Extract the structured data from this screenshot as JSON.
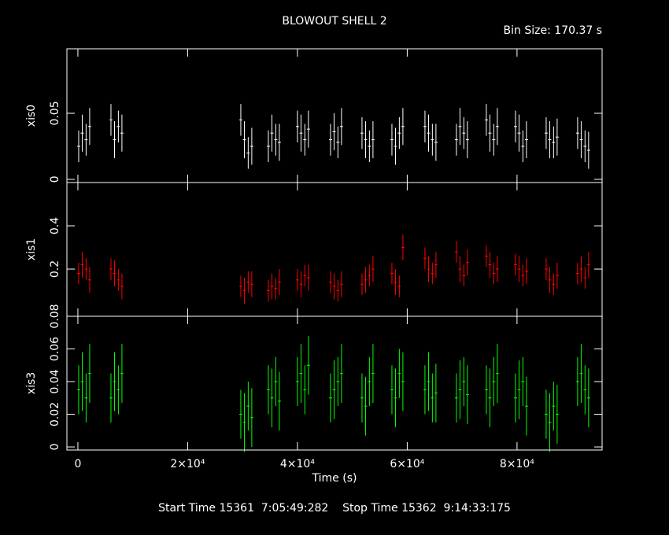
{
  "chart_data": [
    {
      "type": "scatter",
      "title": "BLOWOUT SHELL 2",
      "subtitle": "Bin Size: 170.37 s",
      "ylabel": "xis0",
      "color": "#ffffff",
      "ylim": [
        -0.0024,
        0.0988
      ],
      "yticks": [
        0,
        0.05
      ],
      "x": [
        147,
        797,
        1497,
        2147,
        6025,
        6675,
        7375,
        8025,
        29680,
        30330,
        31030,
        31680,
        34700,
        35350,
        36050,
        36700,
        40000,
        40650,
        41350,
        42000,
        46025,
        46675,
        47375,
        48025,
        51760,
        52410,
        53110,
        53760,
        57210,
        57860,
        58560,
        59210,
        63230,
        63880,
        64580,
        65230,
        68960,
        69610,
        70310,
        70960,
        74410,
        75060,
        75760,
        76410,
        79720,
        80370,
        81070,
        81720,
        85310,
        85960,
        86660,
        87310,
        91040,
        91690,
        92390,
        93040
      ],
      "values": [
        0.025,
        0.035,
        0.03,
        0.04,
        0.045,
        0.03,
        0.04,
        0.035,
        0.045,
        0.03,
        0.02,
        0.025,
        0.025,
        0.035,
        0.03,
        0.028,
        0.04,
        0.035,
        0.03,
        0.038,
        0.03,
        0.036,
        0.028,
        0.04,
        0.035,
        0.03,
        0.025,
        0.03,
        0.03,
        0.025,
        0.035,
        0.04,
        0.04,
        0.035,
        0.03,
        0.028,
        0.03,
        0.04,
        0.035,
        0.03,
        0.045,
        0.035,
        0.03,
        0.04,
        0.04,
        0.035,
        0.025,
        0.03,
        0.035,
        0.03,
        0.028,
        0.032,
        0.035,
        0.03,
        0.025,
        0.022
      ],
      "errors": [
        0.012,
        0.014,
        0.012,
        0.014,
        0.012,
        0.014,
        0.012,
        0.014,
        0.012,
        0.014,
        0.012,
        0.014,
        0.012,
        0.014,
        0.012,
        0.014,
        0.012,
        0.014,
        0.012,
        0.014,
        0.012,
        0.014,
        0.012,
        0.014,
        0.012,
        0.014,
        0.012,
        0.014,
        0.012,
        0.014,
        0.012,
        0.014,
        0.012,
        0.014,
        0.012,
        0.014,
        0.012,
        0.014,
        0.012,
        0.014,
        0.012,
        0.014,
        0.012,
        0.014,
        0.012,
        0.014,
        0.012,
        0.014,
        0.012,
        0.014,
        0.012,
        0.014,
        0.012,
        0.014,
        0.012,
        0.014
      ]
    },
    {
      "type": "scatter",
      "ylabel": "xis1",
      "color": "#ff0000",
      "ylim": [
        -0.018,
        0.6
      ],
      "yticks": [
        0.2,
        0.4
      ],
      "x": [
        147,
        797,
        1497,
        2147,
        6025,
        6675,
        7375,
        8025,
        29680,
        30330,
        31030,
        31680,
        34700,
        35350,
        36050,
        36700,
        40000,
        40650,
        41350,
        42000,
        46025,
        46675,
        47375,
        48025,
        51760,
        52410,
        53110,
        53760,
        57210,
        57860,
        58560,
        59210,
        63230,
        63880,
        64580,
        65230,
        68960,
        69610,
        70310,
        70960,
        74410,
        75060,
        75760,
        76410,
        79720,
        80370,
        81070,
        81720,
        85310,
        85960,
        86660,
        87310,
        91040,
        91690,
        92390,
        93040
      ],
      "values": [
        0.18,
        0.22,
        0.2,
        0.15,
        0.2,
        0.18,
        0.15,
        0.12,
        0.12,
        0.1,
        0.14,
        0.13,
        0.1,
        0.12,
        0.11,
        0.14,
        0.15,
        0.13,
        0.17,
        0.16,
        0.14,
        0.12,
        0.1,
        0.13,
        0.13,
        0.15,
        0.17,
        0.2,
        0.18,
        0.14,
        0.12,
        0.3,
        0.25,
        0.2,
        0.18,
        0.22,
        0.28,
        0.2,
        0.17,
        0.23,
        0.26,
        0.22,
        0.18,
        0.2,
        0.22,
        0.2,
        0.17,
        0.19,
        0.2,
        0.15,
        0.13,
        0.17,
        0.18,
        0.2,
        0.16,
        0.22
      ],
      "errors": [
        0.05,
        0.06,
        0.05,
        0.06,
        0.05,
        0.06,
        0.05,
        0.06,
        0.05,
        0.06,
        0.05,
        0.06,
        0.05,
        0.06,
        0.05,
        0.06,
        0.05,
        0.06,
        0.05,
        0.06,
        0.05,
        0.06,
        0.05,
        0.06,
        0.05,
        0.06,
        0.05,
        0.06,
        0.05,
        0.06,
        0.05,
        0.06,
        0.05,
        0.06,
        0.05,
        0.06,
        0.05,
        0.06,
        0.05,
        0.06,
        0.05,
        0.06,
        0.05,
        0.06,
        0.05,
        0.06,
        0.05,
        0.06,
        0.05,
        0.06,
        0.05,
        0.06,
        0.05,
        0.06,
        0.05,
        0.06
      ]
    },
    {
      "type": "scatter",
      "ylabel": "xis3",
      "xlabel": "Time (s)",
      "color": "#00ff00",
      "ylim": [
        -0.0019,
        0.08
      ],
      "yticks": [
        0,
        0.02,
        0.04,
        0.06,
        0.08
      ],
      "xlim": [
        -2000,
        95500
      ],
      "xticks": [
        0,
        {
          "value": 20000,
          "label": "2×10⁴"
        },
        {
          "value": 40000,
          "label": "4×10⁴"
        },
        {
          "value": 60000,
          "label": "6×10⁴"
        },
        {
          "value": 80000,
          "label": "8×10⁴"
        }
      ],
      "x": [
        147,
        797,
        1497,
        2147,
        6025,
        6675,
        7375,
        8025,
        29680,
        30330,
        31030,
        31680,
        34700,
        35350,
        36050,
        36700,
        40000,
        40650,
        41350,
        42000,
        46025,
        46675,
        47375,
        48025,
        51760,
        52410,
        53110,
        53760,
        57210,
        57860,
        58560,
        59210,
        63230,
        63880,
        64580,
        65230,
        68960,
        69610,
        70310,
        70960,
        74410,
        75060,
        75760,
        76410,
        79720,
        80370,
        81070,
        81720,
        85310,
        85960,
        86660,
        87310,
        91040,
        91690,
        92390,
        93040
      ],
      "values": [
        0.035,
        0.04,
        0.03,
        0.045,
        0.03,
        0.04,
        0.035,
        0.045,
        0.02,
        0.015,
        0.025,
        0.018,
        0.035,
        0.03,
        0.04,
        0.028,
        0.04,
        0.045,
        0.035,
        0.05,
        0.03,
        0.035,
        0.04,
        0.045,
        0.03,
        0.025,
        0.04,
        0.045,
        0.035,
        0.03,
        0.045,
        0.04,
        0.035,
        0.04,
        0.03,
        0.033,
        0.03,
        0.035,
        0.04,
        0.032,
        0.035,
        0.03,
        0.04,
        0.045,
        0.03,
        0.035,
        0.04,
        0.025,
        0.02,
        0.015,
        0.025,
        0.02,
        0.04,
        0.045,
        0.035,
        0.03
      ],
      "errors": [
        0.015,
        0.018,
        0.015,
        0.018,
        0.015,
        0.018,
        0.015,
        0.018,
        0.015,
        0.018,
        0.015,
        0.018,
        0.015,
        0.018,
        0.015,
        0.018,
        0.015,
        0.018,
        0.015,
        0.018,
        0.015,
        0.018,
        0.015,
        0.018,
        0.015,
        0.018,
        0.015,
        0.018,
        0.015,
        0.018,
        0.015,
        0.018,
        0.015,
        0.018,
        0.015,
        0.018,
        0.015,
        0.018,
        0.015,
        0.018,
        0.015,
        0.018,
        0.015,
        0.018,
        0.015,
        0.018,
        0.015,
        0.018,
        0.015,
        0.018,
        0.015,
        0.018,
        0.015,
        0.018,
        0.015,
        0.018
      ]
    }
  ],
  "footer": "Start Time 15361  7:05:49:282    Stop Time 15362  9:14:33:175"
}
